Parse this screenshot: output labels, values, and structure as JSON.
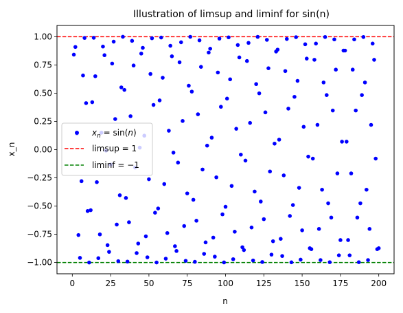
{
  "chart_data": {
    "type": "scatter",
    "title": "Illustration of limsup and liminf for sin(n)",
    "xlabel": "n",
    "ylabel": "x_n",
    "xlim": [
      -10,
      210
    ],
    "ylim": [
      -1.1,
      1.1
    ],
    "xticks": [
      "0",
      "25",
      "50",
      "75",
      "100",
      "125",
      "150",
      "175",
      "200"
    ],
    "yticks": [
      "-1.00",
      "-0.75",
      "-0.50",
      "-0.25",
      "0.00",
      "0.25",
      "0.50",
      "0.75",
      "1.00"
    ],
    "grid": false,
    "legend_position": "center-left",
    "series": [
      {
        "kind": "scatter",
        "name_math": "x_n = sin(n)",
        "color": "#0000ff",
        "x_start": 1,
        "x_end": 200,
        "function": "sin(n)"
      },
      {
        "kind": "hline",
        "name": "limsup = 1",
        "y": 1,
        "color": "#ff0000",
        "style": "dashed"
      },
      {
        "kind": "hline",
        "name": "liminf = −1",
        "y": -1,
        "color": "#008000",
        "style": "dashed"
      }
    ]
  }
}
